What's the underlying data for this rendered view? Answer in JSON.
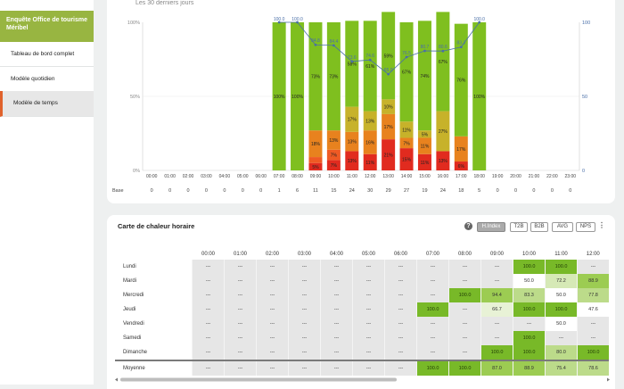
{
  "sidebar": {
    "title": "Enquête Office de tourisme Méribel",
    "items": [
      {
        "label": "Tableau de bord complet"
      },
      {
        "label": "Modèle quotidien"
      },
      {
        "label": "Modèle de temps"
      }
    ]
  },
  "chart_card": {
    "subtitle": "Les 30 derniers jours"
  },
  "chart_data": {
    "type": "bar",
    "categories": [
      "00:00",
      "01:00",
      "02:00",
      "03:00",
      "04:00",
      "05:00",
      "06:00",
      "07:00",
      "08:00",
      "09:00",
      "10:00",
      "11:00",
      "12:00",
      "13:00",
      "14:00",
      "15:00",
      "16:00",
      "17:00",
      "18:00",
      "19:00",
      "20:00",
      "21:00",
      "22:00",
      "23:00"
    ],
    "x_tick_labels": [
      "00:00",
      "01:00",
      "02:00",
      "03:00",
      "04:00",
      "05:00",
      "06:00",
      "07:00",
      "08:00",
      "09:00",
      "10:00",
      "11:00",
      "12:00",
      "13:00",
      "14:00",
      "15:00",
      "16:00",
      "17:00",
      "18:00",
      "19:00",
      "20:00",
      "21:00",
      "22:00",
      "23:00"
    ],
    "y_left_ticks": [
      "0%",
      "50%",
      "100%"
    ],
    "y_right_ticks": [
      "0",
      "50",
      "100"
    ],
    "base_label": "Base",
    "base": [
      0,
      0,
      0,
      0,
      0,
      0,
      0,
      1,
      6,
      11,
      15,
      24,
      30,
      29,
      27,
      19,
      24,
      18,
      5,
      0,
      0,
      0,
      0,
      0
    ],
    "series": [
      {
        "key": "green",
        "values": [
          null,
          null,
          null,
          null,
          null,
          null,
          null,
          100,
          100,
          73,
          73,
          58,
          61,
          59,
          67,
          74,
          67,
          76,
          100,
          null,
          null,
          null,
          null,
          null
        ],
        "labels": [
          "",
          "",
          "",
          "",
          "",
          "",
          "",
          "100%",
          "100%",
          "73%",
          "73%",
          "58%",
          "61%",
          "59%",
          "67%",
          "74%",
          "67%",
          "76%",
          "100%",
          "",
          "",
          "",
          "",
          ""
        ]
      },
      {
        "key": "olive",
        "values": [
          null,
          null,
          null,
          null,
          null,
          null,
          null,
          0,
          0,
          0,
          0,
          17,
          13,
          10,
          11,
          5,
          27,
          0,
          0,
          null,
          null,
          null,
          null,
          null
        ],
        "labels": [
          "",
          "",
          "",
          "",
          "",
          "",
          "",
          "",
          "",
          "",
          "",
          "17%",
          "13%",
          "10%",
          "11%",
          "5%",
          "27%",
          "",
          "",
          "",
          "",
          "",
          "",
          ""
        ]
      },
      {
        "key": "amber",
        "values": [
          null,
          null,
          null,
          null,
          null,
          null,
          null,
          0,
          0,
          18,
          13,
          13,
          16,
          17,
          7,
          11,
          0,
          17,
          0,
          null,
          null,
          null,
          null,
          null
        ],
        "labels": [
          "",
          "",
          "",
          "",
          "",
          "",
          "",
          "",
          "",
          "18%",
          "13%",
          "13%",
          "16%",
          "17%",
          "7%",
          "11%",
          "",
          "17%",
          "",
          "",
          "",
          "",
          "",
          ""
        ]
      },
      {
        "key": "orange",
        "values": [
          null,
          null,
          null,
          null,
          null,
          null,
          null,
          0,
          0,
          4,
          7,
          0,
          0,
          0,
          0,
          0,
          0,
          0,
          0,
          null,
          null,
          null,
          null,
          null
        ],
        "labels": [
          "",
          "",
          "",
          "",
          "",
          "",
          "",
          "",
          "",
          "",
          "7%",
          "",
          "",
          "",
          "",
          "",
          "",
          "",
          "",
          "",
          "",
          "",
          "",
          ""
        ]
      },
      {
        "key": "red",
        "values": [
          null,
          null,
          null,
          null,
          null,
          null,
          null,
          0,
          0,
          5,
          7,
          13,
          11,
          21,
          15,
          11,
          13,
          6,
          0,
          null,
          null,
          null,
          null,
          null
        ],
        "labels": [
          "",
          "",
          "",
          "",
          "",
          "",
          "",
          "",
          "",
          "5%",
          "7%",
          "13%",
          "11%",
          "21%",
          "15%",
          "11%",
          "13%",
          "6%",
          "",
          "",
          "",
          "",
          "",
          ""
        ]
      }
    ],
    "line": {
      "values": [
        null,
        null,
        null,
        null,
        null,
        null,
        null,
        100,
        100,
        84.8,
        84.4,
        73.6,
        74.6,
        65,
        76.5,
        80.7,
        80.6,
        83.3,
        100,
        null,
        null,
        null,
        null,
        null
      ],
      "labels": [
        "",
        "",
        "",
        "",
        "",
        "",
        "",
        "100.0",
        "100.0",
        "84.8",
        "84.4",
        "73.6",
        "74.6",
        "65.0",
        "76.5",
        "80.7",
        "80.6",
        "83.3",
        "100.0",
        "",
        "",
        "",
        "",
        ""
      ]
    },
    "colors": {
      "green": "#7fbf1f",
      "olive": "#c7b22a",
      "amber": "#e8821e",
      "orange": "#ef5a24",
      "red": "#e12b1f",
      "line": "#4a6fa8"
    },
    "ylim": [
      0,
      100
    ]
  },
  "heatmap": {
    "title": "Carte de chaleur horaire",
    "help_icon": "question-circle-icon",
    "pills": [
      {
        "label": "H.Index",
        "active": true
      },
      {
        "label": "T2B"
      },
      {
        "label": "B2B"
      },
      {
        "label": "AVG"
      },
      {
        "label": "NPS"
      }
    ],
    "more_icon": "⋮",
    "hours": [
      "00:00",
      "01:00",
      "02:00",
      "03:00",
      "04:00",
      "05:00",
      "06:00",
      "07:00",
      "08:00",
      "09:00",
      "10:00",
      "11:00",
      "12:00"
    ],
    "rows": [
      {
        "day": "Lundi",
        "values": [
          "---",
          "---",
          "---",
          "---",
          "---",
          "---",
          "---",
          "---",
          "---",
          "---",
          "100.0",
          "100.0",
          "---"
        ]
      },
      {
        "day": "Mardi",
        "values": [
          "---",
          "---",
          "---",
          "---",
          "---",
          "---",
          "---",
          "---",
          "---",
          "---",
          "50.0",
          "72.2",
          "88.9"
        ]
      },
      {
        "day": "Mercredi",
        "values": [
          "---",
          "---",
          "---",
          "---",
          "---",
          "---",
          "---",
          "---",
          "100.0",
          "94.4",
          "83.3",
          "50.0",
          "77.8"
        ]
      },
      {
        "day": "Jeudi",
        "values": [
          "---",
          "---",
          "---",
          "---",
          "---",
          "---",
          "---",
          "100.0",
          "---",
          "66.7",
          "100.0",
          "100.0",
          "47.6"
        ]
      },
      {
        "day": "Vendredi",
        "values": [
          "---",
          "---",
          "---",
          "---",
          "---",
          "---",
          "---",
          "---",
          "---",
          "---",
          "---",
          "50.0",
          "---"
        ]
      },
      {
        "day": "Samedi",
        "values": [
          "---",
          "---",
          "---",
          "---",
          "---",
          "---",
          "---",
          "---",
          "---",
          "---",
          "100.0",
          "---",
          "---"
        ]
      },
      {
        "day": "Dimanche",
        "values": [
          "---",
          "---",
          "---",
          "---",
          "---",
          "---",
          "---",
          "---",
          "---",
          "100.0",
          "100.0",
          "80.0",
          "100.0"
        ]
      }
    ],
    "average": {
      "day": "Moyenne",
      "values": [
        "---",
        "---",
        "---",
        "---",
        "---",
        "---",
        "---",
        "100.0",
        "100.0",
        "87.0",
        "88.9",
        "75.4",
        "78.6"
      ]
    }
  }
}
